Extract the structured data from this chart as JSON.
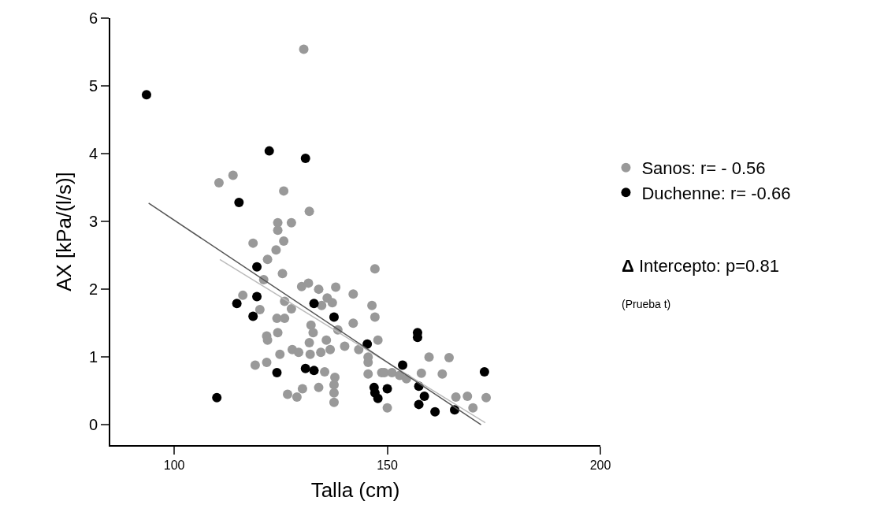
{
  "chart_data": {
    "type": "scatter",
    "xlabel": "Talla (cm)",
    "ylabel": "AX [kPa/(l/s)]",
    "xlim": [
      85,
      200
    ],
    "xticks": [
      100,
      150,
      200
    ],
    "ylim": [
      -0.3,
      6
    ],
    "yticks": [
      0,
      1,
      2,
      3,
      4,
      5,
      6
    ],
    "legend": "right",
    "marker": "circle",
    "series": [
      {
        "name": "Sanos: r= - 0.56",
        "color": "#999999",
        "x": [
          130.4,
          113.8,
          110.5,
          125.7,
          131.7,
          124.3,
          127.5,
          124.3,
          125.7,
          118.5,
          123.9,
          121.9,
          125.4,
          147.1,
          121.0,
          129.9,
          131.5,
          133.9,
          137.9,
          142.0,
          116.1,
          125.9,
          135.9,
          137.1,
          127.5,
          120.1,
          134.6,
          146.4,
          147.1,
          124.1,
          125.9,
          132.1,
          132.6,
          142.0,
          138.4,
          124.3,
          121.7,
          121.9,
          147.8,
          131.7,
          135.7,
          140.0,
          136.6,
          127.7,
          129.2,
          124.8,
          131.9,
          134.4,
          143.3,
          145.5,
          119.0,
          121.7,
          135.3,
          137.7,
          137.5,
          145.5,
          148.7,
          130.1,
          126.6,
          128.8,
          133.9,
          137.5,
          137.5,
          150.0,
          145.5,
          149.3,
          151.1,
          159.8,
          164.5,
          158.0,
          162.9,
          152.9,
          154.5,
          166.1,
          168.8,
          173.2,
          170.1
        ],
        "values": [
          5.54,
          3.68,
          3.57,
          3.45,
          3.15,
          2.98,
          2.98,
          2.87,
          2.71,
          2.68,
          2.58,
          2.44,
          2.23,
          2.3,
          2.14,
          2.04,
          2.09,
          2.0,
          2.03,
          1.93,
          1.91,
          1.82,
          1.87,
          1.8,
          1.71,
          1.7,
          1.76,
          1.76,
          1.59,
          1.57,
          1.57,
          1.47,
          1.36,
          1.5,
          1.4,
          1.36,
          1.31,
          1.25,
          1.25,
          1.21,
          1.25,
          1.16,
          1.11,
          1.11,
          1.07,
          1.04,
          1.04,
          1.07,
          1.11,
          0.92,
          0.88,
          0.92,
          0.78,
          0.7,
          0.59,
          0.75,
          0.77,
          0.53,
          0.45,
          0.41,
          0.55,
          0.47,
          0.33,
          0.25,
          1.0,
          0.77,
          0.77,
          1.0,
          0.99,
          0.76,
          0.75,
          0.73,
          0.68,
          0.41,
          0.42,
          0.4,
          0.25
        ]
      },
      {
        "name": "Duchenne: r= -0.66",
        "color": "#000000",
        "x": [
          93.5,
          122.3,
          130.8,
          115.2,
          119.4,
          114.7,
          119.4,
          118.5,
          132.8,
          137.5,
          145.3,
          110.0,
          124.1,
          130.8,
          132.8,
          157.1,
          157.1,
          153.6,
          157.4,
          158.7,
          157.4,
          161.2,
          165.8,
          172.8,
          146.9,
          147.1,
          147.8,
          150.0
        ],
        "values": [
          4.87,
          4.04,
          3.93,
          3.28,
          2.33,
          1.79,
          1.89,
          1.6,
          1.79,
          1.59,
          1.19,
          0.4,
          0.77,
          0.83,
          0.8,
          1.36,
          1.29,
          0.88,
          0.57,
          0.42,
          0.3,
          0.19,
          0.22,
          0.78,
          0.55,
          0.47,
          0.39,
          0.53
        ]
      },
      {
        "type": "line",
        "marker": "none",
        "color": "#bbbbbb",
        "x": [
          110.7,
          173
        ],
        "values": [
          2.44,
          0.03
        ]
      },
      {
        "type": "line",
        "marker": "none",
        "color": "#555555",
        "x": [
          94,
          172
        ],
        "values": [
          3.27,
          0.0
        ]
      }
    ],
    "annotations": [
      "Δ Intercepto: p=0.81",
      "(Prueba t)"
    ]
  }
}
